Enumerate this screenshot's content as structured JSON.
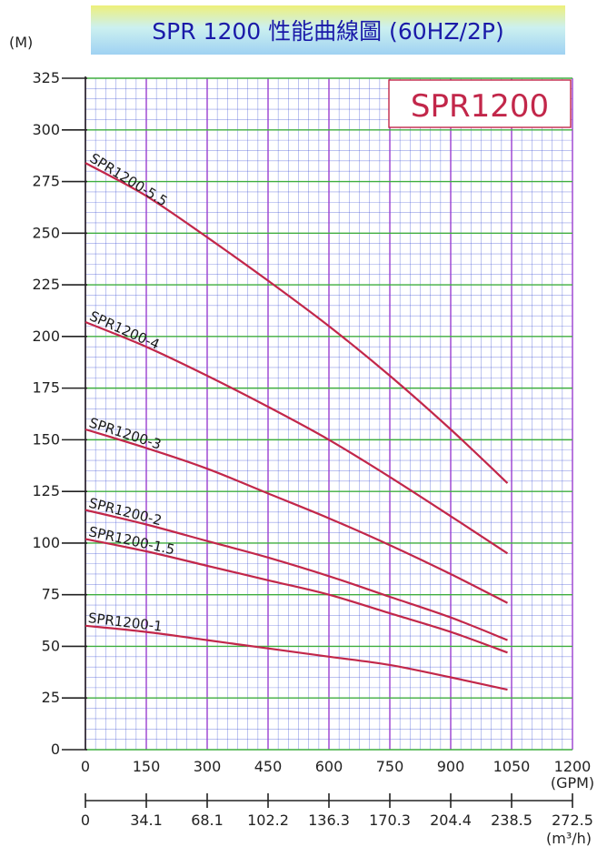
{
  "title": "SPR 1200 性能曲線圖 (60HZ/2P)",
  "chart_data": {
    "type": "line",
    "model_label": "SPR1200",
    "y_unit": "(M)",
    "x_unit_gpm": "(GPM)",
    "x_unit_m3h": "(m³/h)",
    "ylim": [
      0,
      325
    ],
    "xlim": [
      0,
      1200
    ],
    "y_ticks": [
      "0",
      "25",
      "50",
      "75",
      "100",
      "125",
      "150",
      "175",
      "200",
      "225",
      "250",
      "275",
      "300",
      "325"
    ],
    "x_ticks_gpm": [
      "0",
      "150",
      "300",
      "450",
      "600",
      "750",
      "900",
      "1050",
      "1200"
    ],
    "x_ticks_m3h": [
      "0",
      "34.1",
      "68.1",
      "102.2",
      "136.3",
      "170.3",
      "204.4",
      "238.5",
      "272.5"
    ],
    "grid": true,
    "colors": {
      "curve": "#c2274a",
      "grid_minor": "#3a4fd6",
      "grid_major_v": "#9a3fd0",
      "grid_major_h": "#3fae3f"
    },
    "series": [
      {
        "name": "SPR1200-5.5",
        "x": [
          0,
          150,
          300,
          450,
          600,
          750,
          900,
          1040
        ],
        "y": [
          284,
          268,
          248,
          227,
          205,
          181,
          155,
          129
        ]
      },
      {
        "name": "SPR1200-4",
        "x": [
          0,
          150,
          300,
          450,
          600,
          750,
          900,
          1040
        ],
        "y": [
          207,
          195,
          181,
          166,
          150,
          132,
          113,
          95
        ]
      },
      {
        "name": "SPR1200-3",
        "x": [
          0,
          150,
          300,
          450,
          600,
          750,
          900,
          1040
        ],
        "y": [
          155,
          146,
          136,
          124,
          112,
          99,
          85,
          71
        ]
      },
      {
        "name": "SPR1200-2",
        "x": [
          0,
          150,
          300,
          450,
          600,
          750,
          900,
          1040
        ],
        "y": [
          116,
          109,
          101,
          93,
          84,
          74,
          64,
          53
        ]
      },
      {
        "name": "SPR1200-1.5",
        "x": [
          0,
          150,
          300,
          450,
          600,
          750,
          900,
          1040
        ],
        "y": [
          102,
          96,
          89,
          82,
          75,
          66,
          57,
          47
        ]
      },
      {
        "name": "SPR1200-1",
        "x": [
          0,
          150,
          300,
          450,
          600,
          750,
          900,
          1040
        ],
        "y": [
          60,
          57,
          53,
          49,
          45,
          41,
          35,
          29
        ]
      }
    ]
  }
}
